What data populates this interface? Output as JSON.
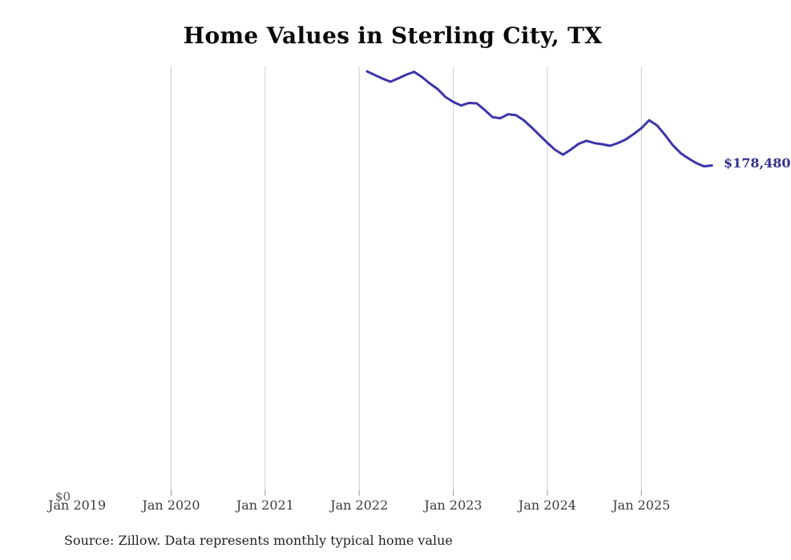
{
  "chart_data": {
    "type": "line",
    "title": "Home Values in Sterling City, TX",
    "source": "Source: Zillow. Data represents monthly typical home value",
    "series_name": "Monthly typical home value",
    "unit": "USD",
    "xlabel": "",
    "ylabel": "",
    "y_zero_label": "$0",
    "end_label": "$178,480",
    "final_value": 178480,
    "ylim": [
      0,
      233000
    ],
    "grid": "vertical-only",
    "legend": "none",
    "x": [
      "2022-02",
      "2022-03",
      "2022-04",
      "2022-05",
      "2022-06",
      "2022-07",
      "2022-08",
      "2022-09",
      "2022-10",
      "2022-11",
      "2022-12",
      "2023-01",
      "2023-02",
      "2023-03",
      "2023-04",
      "2023-05",
      "2023-06",
      "2023-07",
      "2023-08",
      "2023-09",
      "2023-10",
      "2023-11",
      "2023-12",
      "2024-01",
      "2024-02",
      "2024-03",
      "2024-04",
      "2024-05",
      "2024-06",
      "2024-07",
      "2024-08",
      "2024-09",
      "2024-10",
      "2024-11",
      "2024-12",
      "2025-01",
      "2025-02",
      "2025-03",
      "2025-04",
      "2025-05",
      "2025-06",
      "2025-07",
      "2025-08",
      "2025-09",
      "2025-10"
    ],
    "values": [
      230300,
      228300,
      226300,
      224600,
      226500,
      228500,
      230100,
      227200,
      223700,
      220600,
      216200,
      213500,
      211500,
      212900,
      212700,
      209100,
      205100,
      204500,
      206700,
      206200,
      203400,
      199400,
      195200,
      191000,
      187100,
      184400,
      187300,
      190400,
      192100,
      190800,
      190200,
      189300,
      190800,
      192800,
      195700,
      199000,
      203400,
      200500,
      195400,
      189700,
      185300,
      182400,
      179800,
      178000,
      178480
    ],
    "x_ticks": [
      {
        "label": "Jan 2019",
        "month_offset": -37,
        "gridline": false
      },
      {
        "label": "Jan 2020",
        "month_offset": -25,
        "gridline": true
      },
      {
        "label": "Jan 2021",
        "month_offset": -13,
        "gridline": true
      },
      {
        "label": "Jan 2022",
        "month_offset": -1,
        "gridline": true
      },
      {
        "label": "Jan 2023",
        "month_offset": 11,
        "gridline": true
      },
      {
        "label": "Jan 2024",
        "month_offset": 23,
        "gridline": true
      },
      {
        "label": "Jan 2025",
        "month_offset": 35,
        "gridline": true
      }
    ],
    "colors": {
      "line": "#3d35a8",
      "end_label": "#30308c",
      "gridline": "#cccccc",
      "tick": "#999999",
      "axis_label": "#3b3b3b",
      "title": "#0a0a0a",
      "source": "#222222"
    },
    "layout": {
      "x_start": 458,
      "x_step": 9.78,
      "y_zero": 611,
      "y_top": 83,
      "tick_length": 8,
      "line_width": 3
    }
  }
}
